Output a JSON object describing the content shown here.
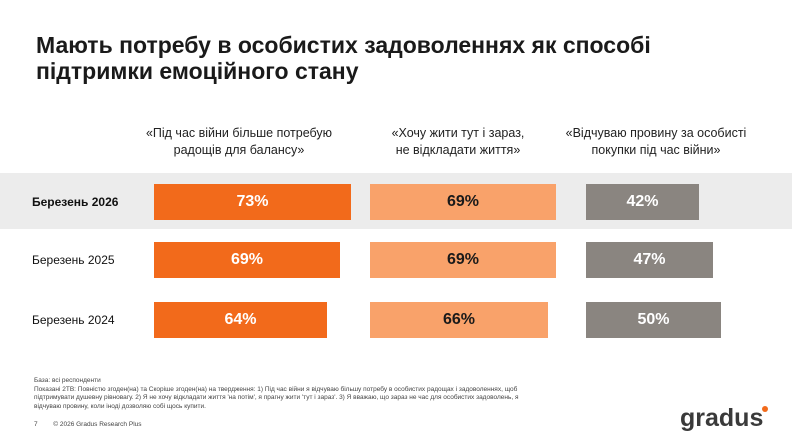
{
  "title_line1": "Мають потребу в особистих задоволеннях як способі",
  "title_line2": "підтримки емоційного стану",
  "chart_data": {
    "type": "bar",
    "orientation": "horizontal",
    "rows": [
      "Березень 2026",
      "Березень 2025",
      "Березень 2024"
    ],
    "columns": [
      {
        "line1": "«Під час війни більше потребую",
        "line2": "радощів для балансу»",
        "color": "#f26a1b",
        "values": [
          73,
          69,
          64
        ],
        "labels": [
          "73%",
          "69%",
          "64%"
        ]
      },
      {
        "line1": "«Хочу жити тут і зараз,",
        "line2": "не відкладати життя»",
        "color": "#f9a26a",
        "values": [
          69,
          69,
          66
        ],
        "labels": [
          "69%",
          "69%",
          "66%"
        ]
      },
      {
        "line1": "«Відчуваю провину за особисті",
        "line2": "покупки під час війни»",
        "color": "#8a8580",
        "values": [
          42,
          47,
          50
        ],
        "labels": [
          "42%",
          "47%",
          "50%"
        ]
      }
    ],
    "highlight_row_color": "#ececec",
    "unit": "%"
  },
  "footnote_line1": "База: всі респонденти",
  "footnote_line2": "Показані 2ТВ: Повністю згоден(на) та Скоріше згоден(на) на твердження: 1) Під час війни я відчуваю більшу потребу в особистих радощах і задоволеннях, щоб",
  "footnote_line3": "підтримувати душевну рівновагу. 2) Я не хочу відкладати життя 'на потім', я прагну жити 'тут і зараз'. 3) Я вважаю, що зараз не час для особистих задоволень, я",
  "footnote_line4": "відчуваю провину, коли іноді дозволяю собі щось купити.",
  "page_number": "7",
  "copyright": "© 2026 Gradus Research Plus",
  "logo_text": "gradus"
}
